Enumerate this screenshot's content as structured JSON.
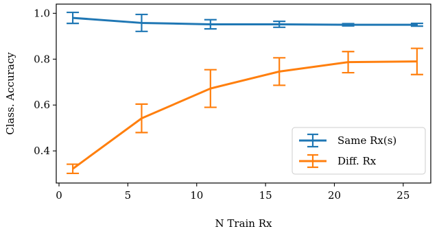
{
  "chart_data": {
    "type": "line",
    "title": "",
    "xlabel": "N Train Rx",
    "ylabel": "Class. Accuracy",
    "xlim": [
      -0.2,
      27.0
    ],
    "ylim": [
      0.26,
      1.04
    ],
    "xticks": [
      0,
      5,
      10,
      15,
      20,
      25
    ],
    "yticks": [
      0.4,
      0.6,
      0.8,
      1.0
    ],
    "grid": false,
    "legend": "lower-right",
    "series": [
      {
        "name": "Same Rx(s)",
        "color": "#1f77b4",
        "points": [
          {
            "x": 1,
            "y": 0.98,
            "err": 0.024
          },
          {
            "x": 6,
            "y": 0.958,
            "err": 0.037
          },
          {
            "x": 11,
            "y": 0.952,
            "err": 0.02
          },
          {
            "x": 16,
            "y": 0.952,
            "err": 0.013
          },
          {
            "x": 21,
            "y": 0.95,
            "err": 0.005
          },
          {
            "x": 26,
            "y": 0.95,
            "err": 0.006
          }
        ]
      },
      {
        "name": "Diff. Rx",
        "color": "#ff7f0e",
        "points": [
          {
            "x": 1,
            "y": 0.322,
            "err": 0.02
          },
          {
            "x": 6,
            "y": 0.542,
            "err": 0.062
          },
          {
            "x": 11,
            "y": 0.672,
            "err": 0.082
          },
          {
            "x": 16,
            "y": 0.746,
            "err": 0.06
          },
          {
            "x": 21,
            "y": 0.787,
            "err": 0.046
          },
          {
            "x": 26,
            "y": 0.79,
            "err": 0.057
          }
        ]
      }
    ]
  }
}
